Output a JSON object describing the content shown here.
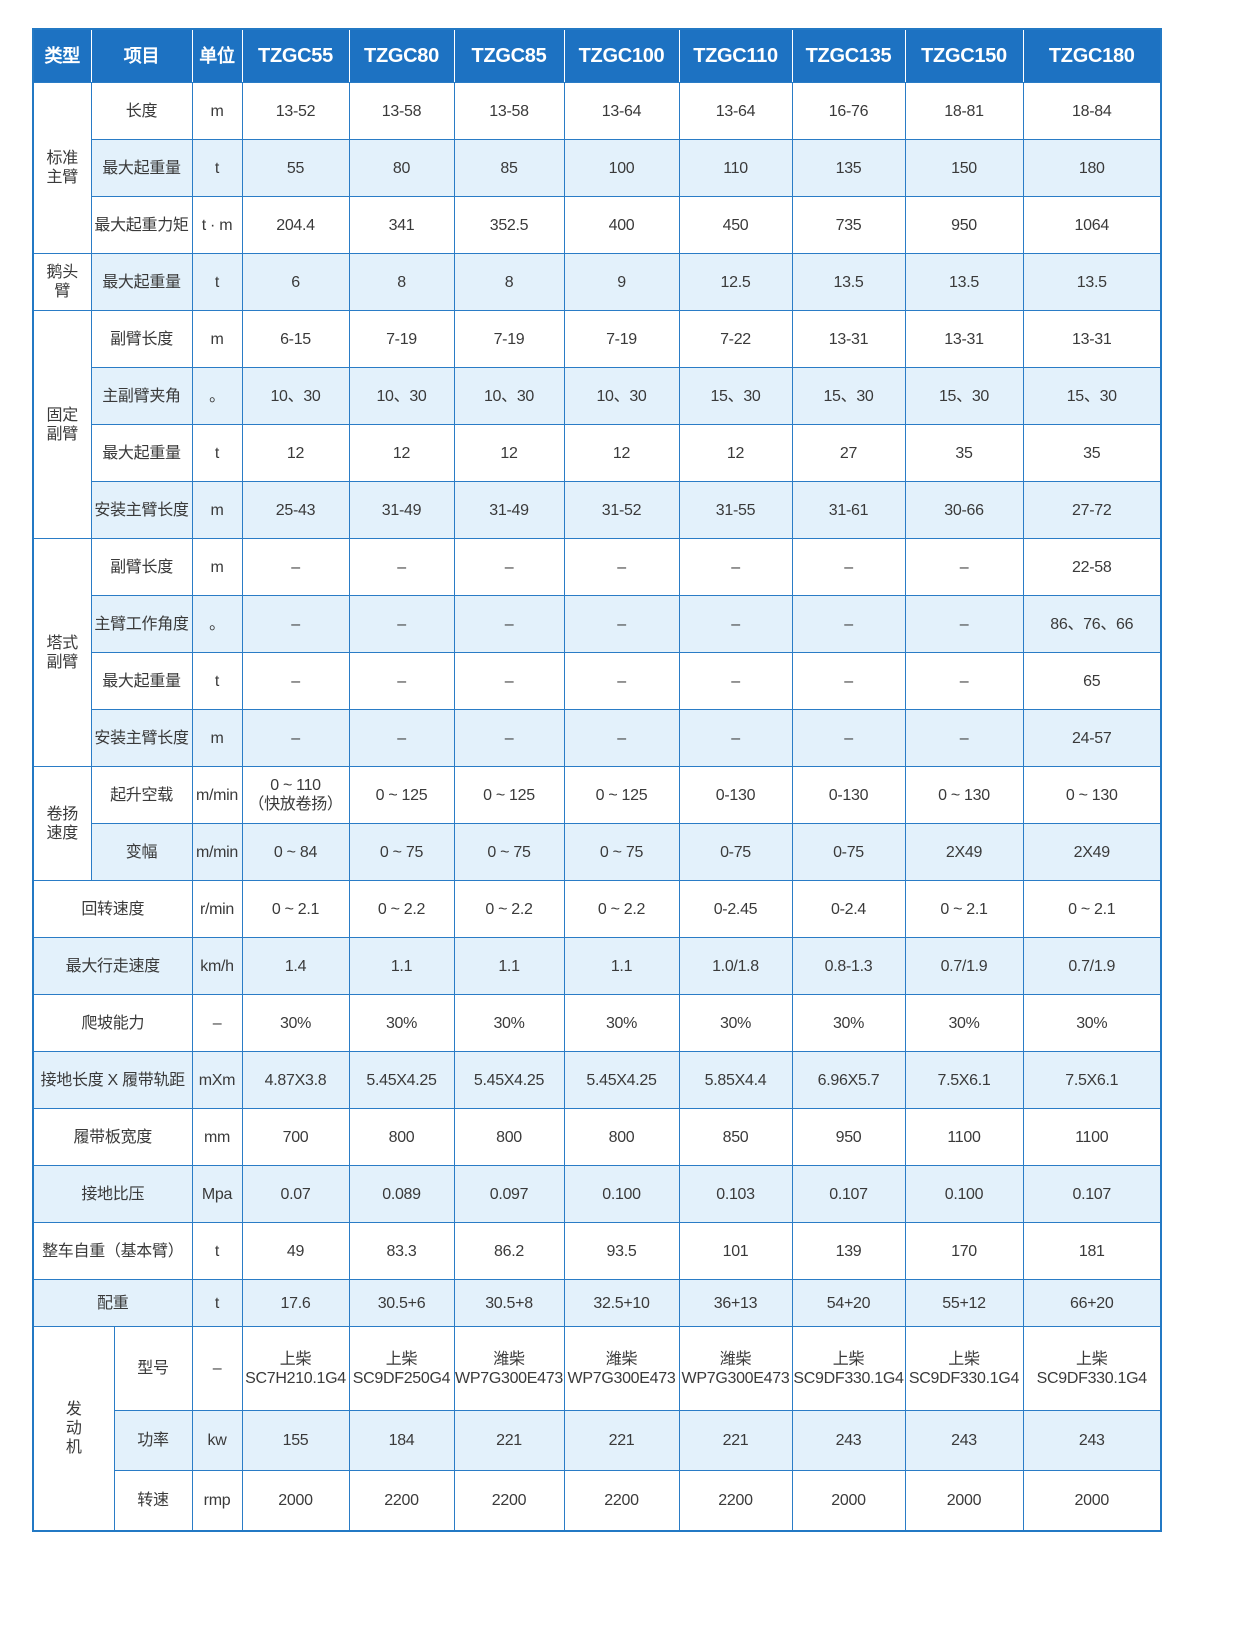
{
  "table": {
    "header": [
      "类型",
      "项目",
      "单位",
      "TZGC55",
      "TZGC80",
      "TZGC85",
      "TZGC100",
      "TZGC110",
      "TZGC135",
      "TZGC150",
      "TZGC180"
    ],
    "sections": [
      {
        "type": "标准主臂",
        "rows": [
          {
            "item": "长度",
            "unit": "m",
            "values": [
              "13-52",
              "13-58",
              "13-58",
              "13-64",
              "13-64",
              "16-76",
              "18-81",
              "18-84"
            ]
          },
          {
            "item": "最大起重量",
            "unit": "t",
            "values": [
              "55",
              "80",
              "85",
              "100",
              "110",
              "135",
              "150",
              "180"
            ]
          },
          {
            "item": "最大起重力矩",
            "unit": "t · m",
            "values": [
              "204.4",
              "341",
              "352.5",
              "400",
              "450",
              "735",
              "950",
              "1064"
            ]
          }
        ]
      },
      {
        "type": "鹅头臂",
        "rows": [
          {
            "item": "最大起重量",
            "unit": "t",
            "values": [
              "6",
              "8",
              "8",
              "9",
              "12.5",
              "13.5",
              "13.5",
              "13.5"
            ]
          }
        ]
      },
      {
        "type": "固定副臂",
        "rows": [
          {
            "item": "副臂长度",
            "unit": "m",
            "values": [
              "6-15",
              "7-19",
              "7-19",
              "7-19",
              "7-22",
              "13-31",
              "13-31",
              "13-31"
            ]
          },
          {
            "item": "主副臂夹角",
            "unit": "。",
            "values": [
              "10、30",
              "10、30",
              "10、30",
              "10、30",
              "15、30",
              "15、30",
              "15、30",
              "15、30"
            ]
          },
          {
            "item": "最大起重量",
            "unit": "t",
            "values": [
              "12",
              "12",
              "12",
              "12",
              "12",
              "27",
              "35",
              "35"
            ]
          },
          {
            "item": "安装主臂长度",
            "unit": "m",
            "values": [
              "25-43",
              "31-49",
              "31-49",
              "31-52",
              "31-55",
              "31-61",
              "30-66",
              "27-72"
            ]
          }
        ]
      },
      {
        "type": "塔式副臂",
        "rows": [
          {
            "item": "副臂长度",
            "unit": "m",
            "values": [
              "–",
              "–",
              "–",
              "–",
              "–",
              "–",
              "–",
              "22-58"
            ]
          },
          {
            "item": "主臂工作角度",
            "unit": "。",
            "values": [
              "–",
              "–",
              "–",
              "–",
              "–",
              "–",
              "–",
              "86、76、66"
            ]
          },
          {
            "item": "最大起重量",
            "unit": "t",
            "values": [
              "–",
              "–",
              "–",
              "–",
              "–",
              "–",
              "–",
              "65"
            ]
          },
          {
            "item": "安装主臂长度",
            "unit": "m",
            "values": [
              "–",
              "–",
              "–",
              "–",
              "–",
              "–",
              "–",
              "24-57"
            ]
          }
        ]
      },
      {
        "type": "卷扬速度",
        "rows": [
          {
            "item": "起升空载",
            "unit": "m/min",
            "values": [
              "0 ~ 110\n（快放卷扬）",
              "0 ~ 125",
              "0 ~ 125",
              "0 ~ 125",
              "0-130",
              "0-130",
              "0 ~ 130",
              "0 ~ 130"
            ]
          },
          {
            "item": "变幅",
            "unit": "m/min",
            "values": [
              "0 ~ 84",
              "0 ~ 75",
              "0 ~ 75",
              "0 ~ 75",
              "0-75",
              "0-75",
              "2X49",
              "2X49"
            ]
          }
        ]
      },
      {
        "rows": [
          {
            "item": "回转速度",
            "unit": "r/min",
            "values": [
              "0 ~ 2.1",
              "0 ~ 2.2",
              "0 ~ 2.2",
              "0 ~ 2.2",
              "0-2.45",
              "0-2.4",
              "0 ~ 2.1",
              "0 ~ 2.1"
            ]
          },
          {
            "item": "最大行走速度",
            "unit": "km/h",
            "values": [
              "1.4",
              "1.1",
              "1.1",
              "1.1",
              "1.0/1.8",
              "0.8-1.3",
              "0.7/1.9",
              "0.7/1.9"
            ]
          },
          {
            "item": "爬坡能力",
            "unit": "–",
            "values": [
              "30%",
              "30%",
              "30%",
              "30%",
              "30%",
              "30%",
              "30%",
              "30%"
            ]
          },
          {
            "item": "接地长度 X 履带轨距",
            "unit": "mXm",
            "values": [
              "4.87X3.8",
              "5.45X4.25",
              "5.45X4.25",
              "5.45X4.25",
              "5.85X4.4",
              "6.96X5.7",
              "7.5X6.1",
              "7.5X6.1"
            ]
          },
          {
            "item": "履带板宽度",
            "unit": "mm",
            "values": [
              "700",
              "800",
              "800",
              "800",
              "850",
              "950",
              "1100",
              "1100"
            ]
          },
          {
            "item": "接地比压",
            "unit": "Mpa",
            "values": [
              "0.07",
              "0.089",
              "0.097",
              "0.100",
              "0.103",
              "0.107",
              "0.100",
              "0.107"
            ]
          },
          {
            "item": "整车自重（基本臂）",
            "unit": "t",
            "values": [
              "49",
              "83.3",
              "86.2",
              "93.5",
              "101",
              "139",
              "170",
              "181"
            ]
          },
          {
            "item": "配重",
            "unit": "t",
            "values": [
              "17.6",
              "30.5+6",
              "30.5+8",
              "32.5+10",
              "36+13",
              "54+20",
              "55+12",
              "66+20"
            ]
          }
        ]
      },
      {
        "type": "发动机",
        "rows": [
          {
            "item": "型号",
            "unit": "–",
            "values": [
              "上柴\nSC7H210.1G4",
              "上柴\nSC9DF250G4",
              "潍柴\nWP7G300E473",
              "潍柴\nWP7G300E473",
              "潍柴\nWP7G300E473",
              "上柴\nSC9DF330.1G4",
              "上柴\nSC9DF330.1G4",
              "上柴\nSC9DF330.1G4"
            ]
          },
          {
            "item": "功率",
            "unit": "kw",
            "values": [
              "155",
              "184",
              "221",
              "221",
              "221",
              "243",
              "243",
              "243"
            ]
          },
          {
            "item": "转速",
            "unit": "rmp",
            "values": [
              "2000",
              "2200",
              "2200",
              "2200",
              "2200",
              "2000",
              "2000",
              "2000"
            ]
          }
        ]
      }
    ]
  }
}
